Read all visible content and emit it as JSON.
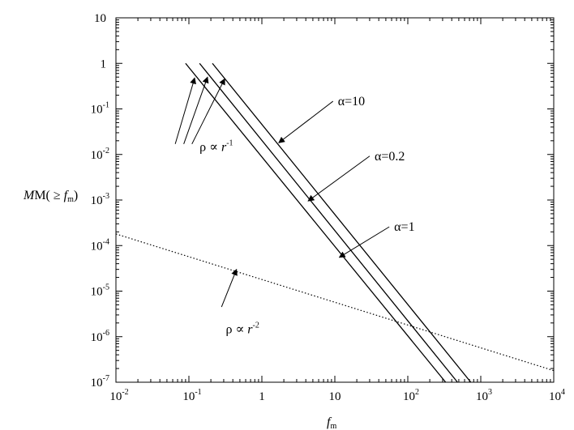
{
  "chart_data": {
    "type": "line",
    "x_scale": "log",
    "y_scale": "log",
    "xlim": [
      0.01,
      10000
    ],
    "ylim": [
      1e-07,
      10
    ],
    "grid": false,
    "xlabel": {
      "main": "f",
      "sub": "m"
    },
    "ylabel": {
      "pre": "M( ≥ ",
      "f": "f",
      "sub": "m",
      "post": ")"
    },
    "x_ticks": [
      {
        "value": 0.01,
        "base": "10",
        "exp": "-2"
      },
      {
        "value": 0.1,
        "base": "10",
        "exp": "-1"
      },
      {
        "value": 1,
        "base": "1",
        "exp": ""
      },
      {
        "value": 10,
        "base": "10",
        "exp": ""
      },
      {
        "value": 100,
        "base": "10",
        "exp": "2"
      },
      {
        "value": 1000,
        "base": "10",
        "exp": "3"
      },
      {
        "value": 10000,
        "base": "10",
        "exp": "4"
      }
    ],
    "y_ticks": [
      {
        "value": 10,
        "base": "10",
        "exp": ""
      },
      {
        "value": 1,
        "base": "1",
        "exp": ""
      },
      {
        "value": 0.1,
        "base": "10",
        "exp": "-1"
      },
      {
        "value": 0.01,
        "base": "10",
        "exp": "-2"
      },
      {
        "value": 0.001,
        "base": "10",
        "exp": "-3"
      },
      {
        "value": 0.0001,
        "base": "10",
        "exp": "-4"
      },
      {
        "value": 1e-05,
        "base": "10",
        "exp": "-5"
      },
      {
        "value": 1e-06,
        "base": "10",
        "exp": "-6"
      },
      {
        "value": 1e-07,
        "base": "10",
        "exp": "-7"
      }
    ],
    "series": [
      {
        "style": "solid",
        "x": [
          0.09,
          330
        ],
        "y": [
          1,
          1e-07
        ]
      },
      {
        "style": "solid",
        "x": [
          0.14,
          480
        ],
        "y": [
          1,
          1e-07
        ]
      },
      {
        "style": "solid",
        "x": [
          0.21,
          730
        ],
        "y": [
          1,
          1e-07
        ]
      },
      {
        "style": "dotted",
        "x": [
          0.01,
          10000
        ],
        "y": [
          0.00018,
          1.8e-07
        ]
      }
    ],
    "annotations": [
      {
        "id": "alpha10",
        "prefix": "α",
        "text": "=10",
        "at": [
          11,
          0.12
        ],
        "point": [
          1.7,
          0.018
        ]
      },
      {
        "id": "alpha02",
        "prefix": "α",
        "text": "=0.2",
        "at": [
          35,
          0.0075
        ],
        "point": [
          4.3,
          0.00095
        ]
      },
      {
        "id": "alpha1",
        "prefix": "α",
        "text": "=1",
        "at": [
          65,
          0.00021
        ],
        "point": [
          11.5,
          5.5e-05
        ]
      },
      {
        "id": "rho_r1",
        "prefix": "ρ ∝ ",
        "var": "r",
        "exp": "-1",
        "at": [
          0.14,
          0.012
        ],
        "arrows": [
          {
            "from": [
              0.065,
              0.017
            ],
            "to": [
              0.12,
              0.48
            ]
          },
          {
            "from": [
              0.085,
              0.017
            ],
            "to": [
              0.18,
              0.5
            ]
          },
          {
            "from": [
              0.11,
              0.017
            ],
            "to": [
              0.31,
              0.46
            ]
          }
        ]
      },
      {
        "id": "rho_r2",
        "prefix": "ρ ∝ ",
        "var": "r",
        "exp": "-2",
        "at": [
          0.32,
          1.2e-06
        ],
        "arrows": [
          {
            "from": [
              0.28,
              4.5e-06
            ],
            "to": [
              0.45,
              3e-05
            ]
          }
        ]
      }
    ]
  }
}
